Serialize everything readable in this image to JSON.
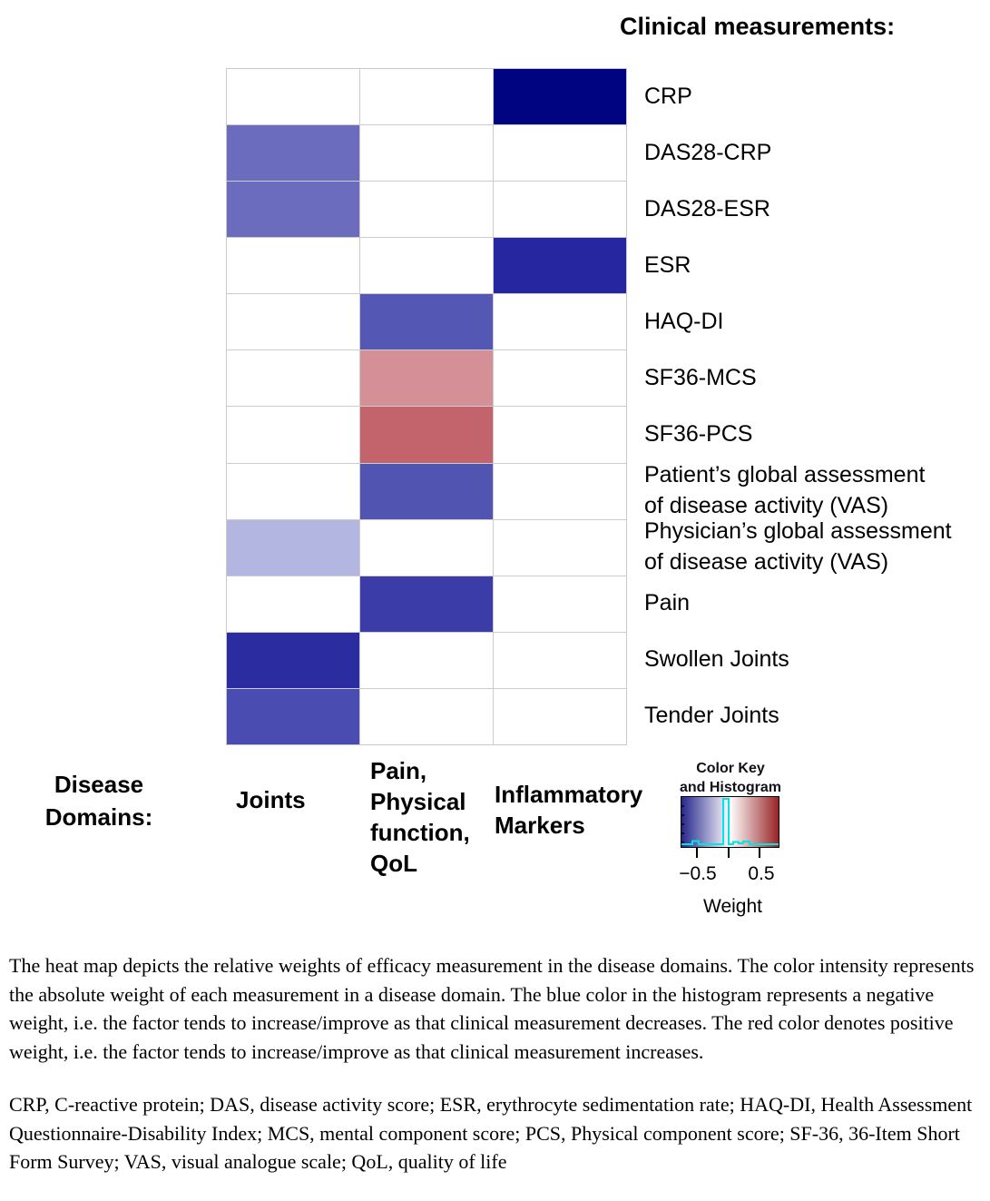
{
  "chart_data": {
    "type": "heatmap",
    "title": "Clinical measurements:",
    "col_axis_title_lines": [
      "Disease",
      "Domains:"
    ],
    "columns": [
      {
        "label_lines": [
          "Joints"
        ]
      },
      {
        "label_lines": [
          "Pain,",
          "Physical",
          "function,",
          "QoL"
        ]
      },
      {
        "label_lines": [
          "Inflammatory",
          "Markers"
        ]
      }
    ],
    "rows": [
      {
        "label_lines": [
          "CRP"
        ],
        "cells": [
          null,
          null,
          {
            "color": "#010480",
            "weight": -0.77
          }
        ]
      },
      {
        "label_lines": [
          "DAS28-CRP"
        ],
        "cells": [
          {
            "color": "#6B6CBE",
            "weight": -0.45
          },
          null,
          null
        ]
      },
      {
        "label_lines": [
          "DAS28-ESR"
        ],
        "cells": [
          {
            "color": "#6B6CBE",
            "weight": -0.45
          },
          null,
          null
        ]
      },
      {
        "label_lines": [
          "ESR"
        ],
        "cells": [
          null,
          null,
          {
            "color": "#2626A0",
            "weight": -0.7
          }
        ]
      },
      {
        "label_lines": [
          "HAQ-DI"
        ],
        "cells": [
          null,
          {
            "color": "#5557B5",
            "weight": -0.55
          },
          null
        ]
      },
      {
        "label_lines": [
          "SF36-MCS"
        ],
        "cells": [
          null,
          {
            "color": "#D59097",
            "weight": 0.35
          },
          null
        ]
      },
      {
        "label_lines": [
          "SF36-PCS"
        ],
        "cells": [
          null,
          {
            "color": "#C3636C",
            "weight": 0.5
          },
          null
        ]
      },
      {
        "label_lines": [
          "Patient’s global assessment",
          "of disease activity (VAS)"
        ],
        "cells": [
          null,
          {
            "color": "#5254B1",
            "weight": -0.57
          },
          null
        ]
      },
      {
        "label_lines": [
          "Physician’s global assessment",
          "of disease activity (VAS)"
        ],
        "cells": [
          {
            "color": "#B4B6E2",
            "weight": -0.25
          },
          null,
          null
        ]
      },
      {
        "label_lines": [
          "Pain"
        ],
        "cells": [
          null,
          {
            "color": "#3B3CA8",
            "weight": -0.63
          },
          null
        ]
      },
      {
        "label_lines": [
          "Swollen Joints"
        ],
        "cells": [
          {
            "color": "#2B2CA0",
            "weight": -0.68
          },
          null,
          null
        ]
      },
      {
        "label_lines": [
          "Tender Joints"
        ],
        "cells": [
          {
            "color": "#4A4CB2",
            "weight": -0.58
          },
          null,
          null
        ]
      }
    ],
    "legend": {
      "title_lines": [
        "Color Key",
        "and Histogram"
      ],
      "axis_label": "Weight",
      "tick_labels": [
        "−0.5",
        "0.5"
      ],
      "axis_range": [
        -0.77,
        0.77
      ],
      "gradient_stops": [
        "#26268C",
        "#FFFFFF",
        "#982326"
      ],
      "histogram_color": "#00E5E5"
    }
  },
  "caption": {
    "paragraph1": "The heat map depicts the relative weights of efficacy measurement in the disease domains. The color intensity represents the absolute weight of each measurement in a disease domain. The blue color in the histogram represents a negative weight, i.e. the factor tends to increase/improve as that clinical measurement decreases. The red color denotes positive weight, i.e. the factor tends to increase/improve as that clinical measurement increases.",
    "paragraph2": "CRP, C-reactive protein; DAS, disease activity score; ESR, erythrocyte sedimentation rate; HAQ-DI, Health Assessment Questionnaire-Disability Index; MCS, mental component score; PCS, Physical component score; SF-36, 36-Item Short Form Survey; VAS, visual analogue scale; QoL, quality of life"
  }
}
